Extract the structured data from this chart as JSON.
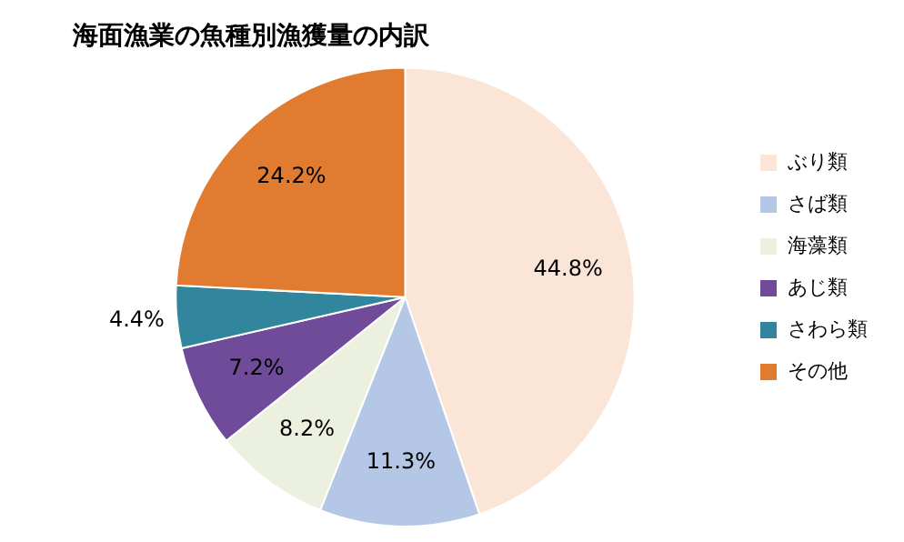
{
  "chart_data": {
    "type": "pie",
    "title": "海面漁業の魚種別漁獲量の内訳",
    "categories": [
      "ぶり類",
      "さば類",
      "海藻類",
      "あじ類",
      "さわら類",
      "その他"
    ],
    "values": [
      44.8,
      11.3,
      8.2,
      7.2,
      4.4,
      24.2
    ],
    "value_labels": [
      "44.8%",
      "11.3%",
      "8.2%",
      "7.2%",
      "4.4%",
      "24.2%"
    ],
    "colors": [
      "#fbe5d6",
      "#b4c7e7",
      "#ebf1de",
      "#6f4b9a",
      "#31859c",
      "#e07b2f"
    ],
    "legend": "right"
  }
}
